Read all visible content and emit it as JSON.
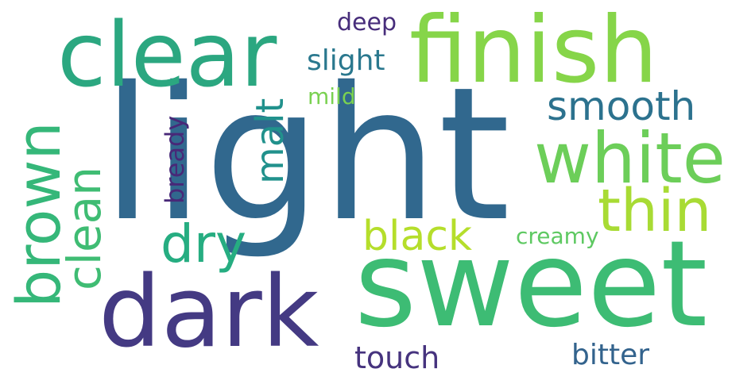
{
  "words": [
    {
      "id": "light",
      "text": "light",
      "color": "#31688E"
    },
    {
      "id": "sweet",
      "text": "sweet",
      "color": "#3DBC74"
    },
    {
      "id": "finish",
      "text": "finish",
      "color": "#86D549"
    },
    {
      "id": "clear",
      "text": "clear",
      "color": "#2BA780"
    },
    {
      "id": "dark",
      "text": "dark",
      "color": "#443A83"
    },
    {
      "id": "white",
      "text": "white",
      "color": "#6CCE59"
    },
    {
      "id": "thin",
      "text": "thin",
      "color": "#A8DB34"
    },
    {
      "id": "brown",
      "text": "brown",
      "color": "#35B779"
    },
    {
      "id": "smooth",
      "text": "smooth",
      "color": "#2C728E"
    },
    {
      "id": "black",
      "text": "black",
      "color": "#B5DE2B"
    },
    {
      "id": "dry",
      "text": "dry",
      "color": "#26AD81"
    },
    {
      "id": "clean",
      "text": "clean",
      "color": "#3FBC73"
    },
    {
      "id": "malt",
      "text": "malt",
      "color": "#21918C"
    },
    {
      "id": "slight",
      "text": "slight",
      "color": "#2A788E"
    },
    {
      "id": "bready",
      "text": "bready",
      "color": "#482878"
    },
    {
      "id": "deep",
      "text": "deep",
      "color": "#472D7B"
    },
    {
      "id": "mild",
      "text": "mild",
      "color": "#7AD151"
    },
    {
      "id": "creamy",
      "text": "creamy",
      "color": "#5EC962"
    },
    {
      "id": "touch",
      "text": "touch",
      "color": "#46337E"
    },
    {
      "id": "bitter",
      "text": "bitter",
      "color": "#33638D"
    }
  ]
}
